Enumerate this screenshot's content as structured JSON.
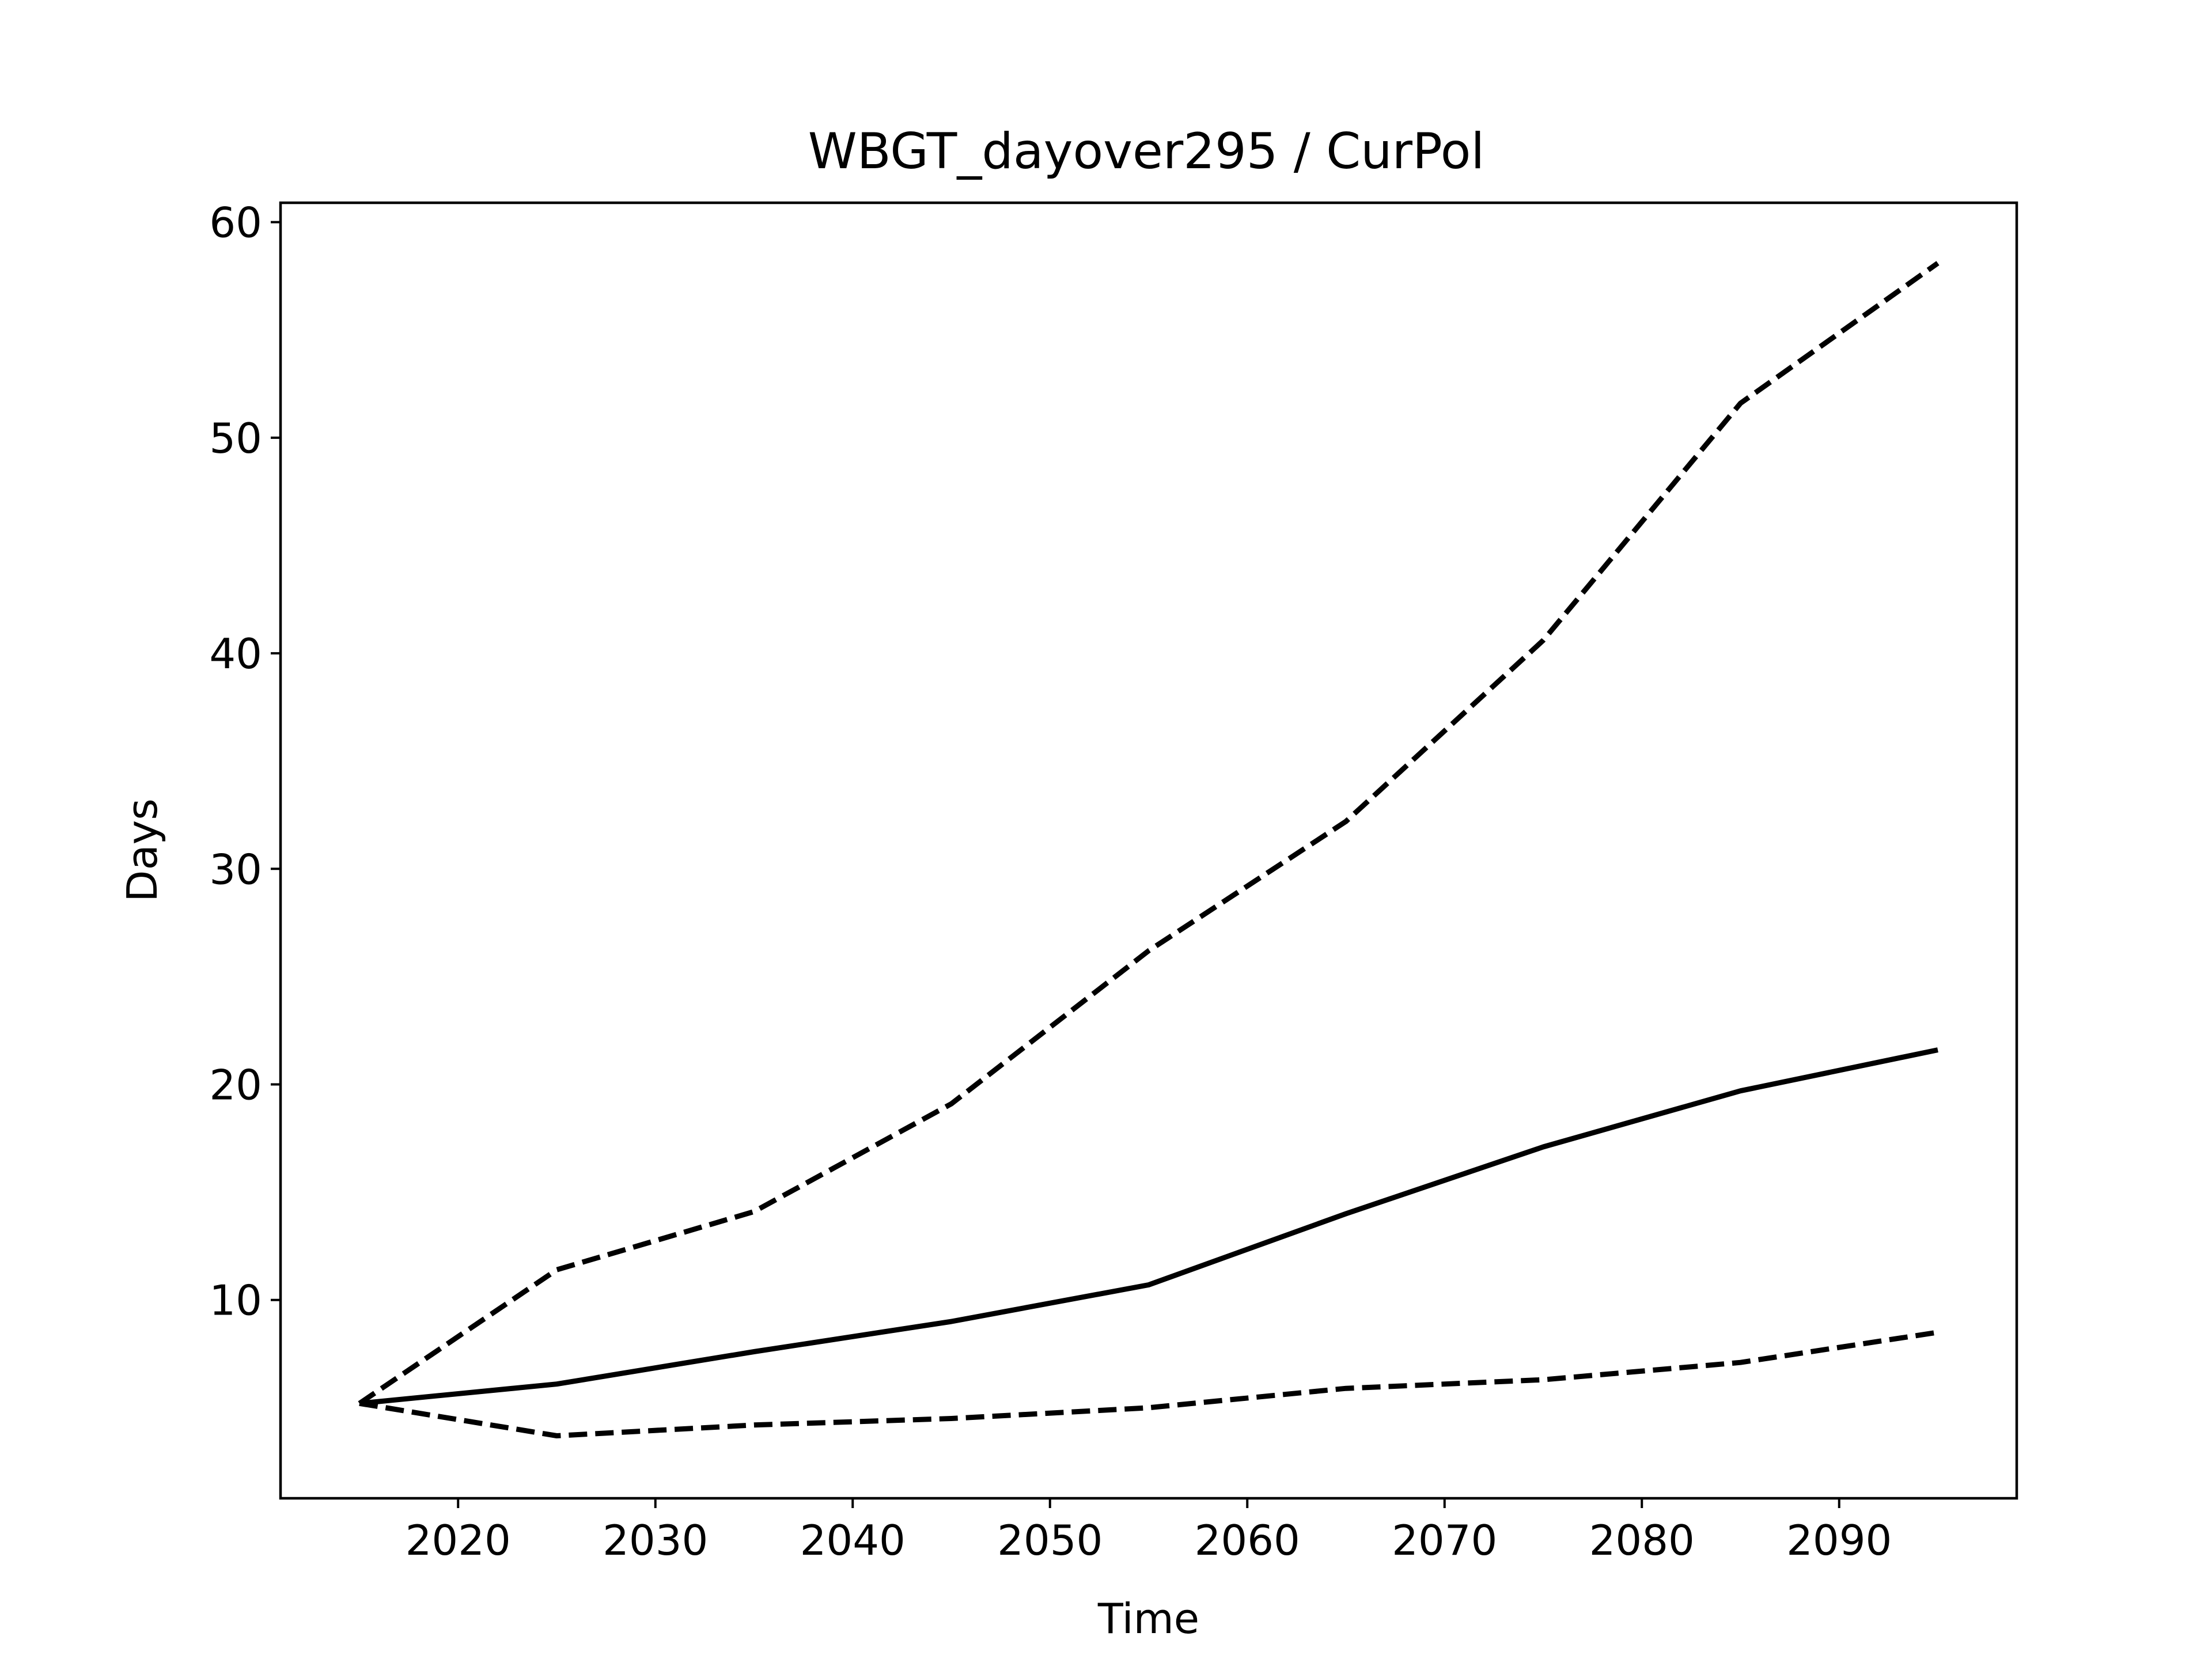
{
  "chart_data": {
    "type": "line",
    "title": "WBGT_dayover295 / CurPol",
    "xlabel": "Time",
    "ylabel": "Days",
    "xlim": [
      2011,
      2099
    ],
    "ylim": [
      0.8,
      60.9
    ],
    "x_ticks": [
      2020,
      2030,
      2040,
      2050,
      2060,
      2070,
      2080,
      2090
    ],
    "y_ticks": [
      10,
      20,
      30,
      40,
      50,
      60
    ],
    "grid": false,
    "legend": "none",
    "x": [
      2015,
      2025,
      2035,
      2045,
      2055,
      2065,
      2075,
      2085,
      2095
    ],
    "series": [
      {
        "style": "dashed",
        "color": "#000000",
        "values": [
          5.2,
          11.4,
          14.1,
          19.1,
          26.2,
          32.2,
          40.6,
          51.6,
          58.1
        ]
      },
      {
        "style": "solid",
        "color": "#000000",
        "values": [
          5.2,
          6.1,
          7.6,
          9.0,
          10.7,
          14.0,
          17.1,
          19.7,
          21.6
        ]
      },
      {
        "style": "dashed",
        "color": "#000000",
        "values": [
          5.2,
          3.7,
          4.2,
          4.5,
          5.0,
          5.9,
          6.3,
          7.1,
          8.5
        ]
      }
    ]
  }
}
